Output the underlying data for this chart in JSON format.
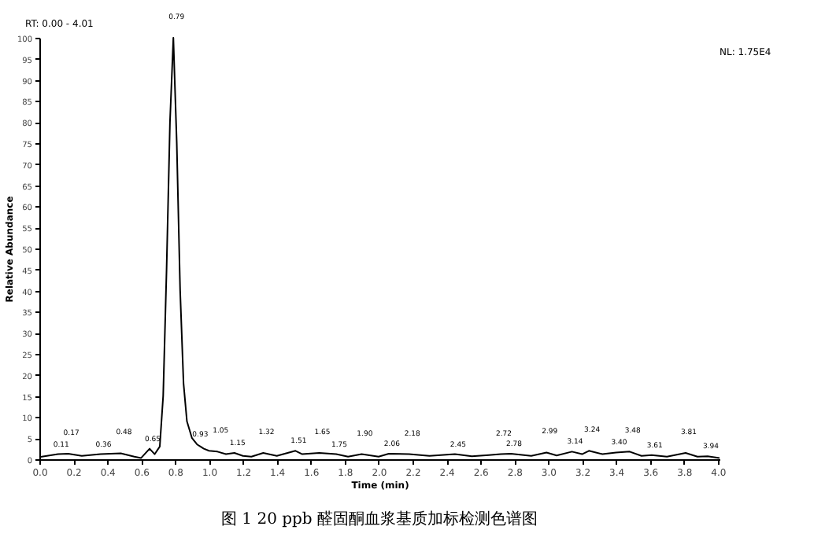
{
  "chart_data": {
    "type": "line",
    "title": "图 1 20 ppb 醛固酮血浆基质加标检测色谱图",
    "xlabel": "Time (min)",
    "ylabel": "Relative Abundance",
    "xlim": [
      0,
      4.01
    ],
    "ylim": [
      0,
      100
    ],
    "xticks": [
      {
        "value": 0,
        "label": "0.0"
      },
      {
        "value": 0.2,
        "label": "0.2"
      },
      {
        "value": 0.4,
        "label": "0.4"
      },
      {
        "value": 0.6,
        "label": "0.6"
      },
      {
        "value": 0.8,
        "label": "0.8"
      },
      {
        "value": 1,
        "label": "1.0"
      },
      {
        "value": 1.2,
        "label": "1.2"
      },
      {
        "value": 1.4,
        "label": "1.4"
      },
      {
        "value": 1.6,
        "label": "1.6"
      },
      {
        "value": 1.8,
        "label": "1.8"
      },
      {
        "value": 2,
        "label": "2.0"
      },
      {
        "value": 2.2,
        "label": "2.2"
      },
      {
        "value": 2.4,
        "label": "2.4"
      },
      {
        "value": 2.6,
        "label": "2.6"
      },
      {
        "value": 2.8,
        "label": "2.8"
      },
      {
        "value": 3,
        "label": "3.0"
      },
      {
        "value": 3.2,
        "label": "3.2"
      },
      {
        "value": 3.4,
        "label": "3.4"
      },
      {
        "value": 3.6,
        "label": "3.6"
      },
      {
        "value": 3.8,
        "label": "3.8"
      },
      {
        "value": 4,
        "label": "4.0"
      }
    ],
    "yticks": [
      0,
      5,
      10,
      15,
      20,
      25,
      30,
      35,
      40,
      45,
      50,
      55,
      60,
      65,
      70,
      75,
      80,
      85,
      90,
      95,
      100
    ],
    "series": [
      {
        "color": "#000000",
        "x": [
          0,
          0.11,
          0.17,
          0.25,
          0.36,
          0.48,
          0.56,
          0.6,
          0.65,
          0.68,
          0.71,
          0.73,
          0.75,
          0.77,
          0.79,
          0.81,
          0.83,
          0.85,
          0.87,
          0.9,
          0.93,
          0.97,
          1.0,
          1.05,
          1.1,
          1.15,
          1.2,
          1.25,
          1.32,
          1.4,
          1.51,
          1.55,
          1.65,
          1.75,
          1.82,
          1.9,
          2.0,
          2.06,
          2.18,
          2.3,
          2.45,
          2.55,
          2.65,
          2.72,
          2.78,
          2.9,
          2.99,
          3.05,
          3.14,
          3.2,
          3.24,
          3.32,
          3.4,
          3.48,
          3.55,
          3.61,
          3.7,
          3.81,
          3.88,
          3.94,
          4.01
        ],
        "values": [
          0.5,
          1.2,
          1.3,
          0.8,
          1.2,
          1.4,
          0.6,
          0.3,
          2.5,
          1.2,
          3,
          15,
          45,
          80,
          100,
          75,
          40,
          18,
          9,
          5,
          3.5,
          2.5,
          2,
          1.8,
          1.2,
          1.5,
          0.8,
          0.6,
          1.5,
          0.8,
          2,
          1.2,
          1.5,
          1.2,
          0.6,
          1.2,
          0.6,
          1.3,
          1.2,
          0.8,
          1.2,
          0.7,
          1,
          1.2,
          1.3,
          0.8,
          1.6,
          0.9,
          1.8,
          1.2,
          2,
          1.2,
          1.6,
          1.8,
          0.8,
          1,
          0.6,
          1.5,
          0.6,
          0.7,
          0.3
        ]
      }
    ],
    "marker": "none",
    "grid": false,
    "annotations": [
      "RT: 0.00 - 4.01",
      "NL: 1.75E4",
      {
        "text": "0.11",
        "x": 0.11,
        "y": 1.2
      },
      {
        "text": "0.17",
        "x": 0.17,
        "y": 1.3
      },
      {
        "text": "0.36",
        "x": 0.36,
        "y": 1.2
      },
      {
        "text": "0.48",
        "x": 0.48,
        "y": 1.4
      },
      {
        "text": "0.65",
        "x": 0.65,
        "y": 2.5
      },
      {
        "text": "0.79",
        "x": 0.79,
        "y": 100
      },
      {
        "text": "0.93",
        "x": 0.93,
        "y": 3.5
      },
      {
        "text": "1.05",
        "x": 1.05,
        "y": 1.8
      },
      {
        "text": "1.15",
        "x": 1.15,
        "y": 1.5
      },
      {
        "text": "1.32",
        "x": 1.32,
        "y": 1.5
      },
      {
        "text": "1.51",
        "x": 1.51,
        "y": 2
      },
      {
        "text": "1.65",
        "x": 1.65,
        "y": 1.5
      },
      {
        "text": "1.75",
        "x": 1.75,
        "y": 1.2
      },
      {
        "text": "1.90",
        "x": 1.9,
        "y": 1.2
      },
      {
        "text": "2.06",
        "x": 2.06,
        "y": 1.3
      },
      {
        "text": "2.18",
        "x": 2.18,
        "y": 1.2
      },
      {
        "text": "2.45",
        "x": 2.45,
        "y": 1.2
      },
      {
        "text": "2.72",
        "x": 2.72,
        "y": 1.2
      },
      {
        "text": "2.78",
        "x": 2.78,
        "y": 1.3
      },
      {
        "text": "2.99",
        "x": 2.99,
        "y": 1.6
      },
      {
        "text": "3.14",
        "x": 3.14,
        "y": 1.8
      },
      {
        "text": "3.24",
        "x": 3.24,
        "y": 2
      },
      {
        "text": "3.40",
        "x": 3.4,
        "y": 1.6
      },
      {
        "text": "3.48",
        "x": 3.48,
        "y": 1.8
      },
      {
        "text": "3.61",
        "x": 3.61,
        "y": 1
      },
      {
        "text": "3.81",
        "x": 3.81,
        "y": 1.5
      },
      {
        "text": "3.94",
        "x": 3.94,
        "y": 0.7
      }
    ]
  }
}
